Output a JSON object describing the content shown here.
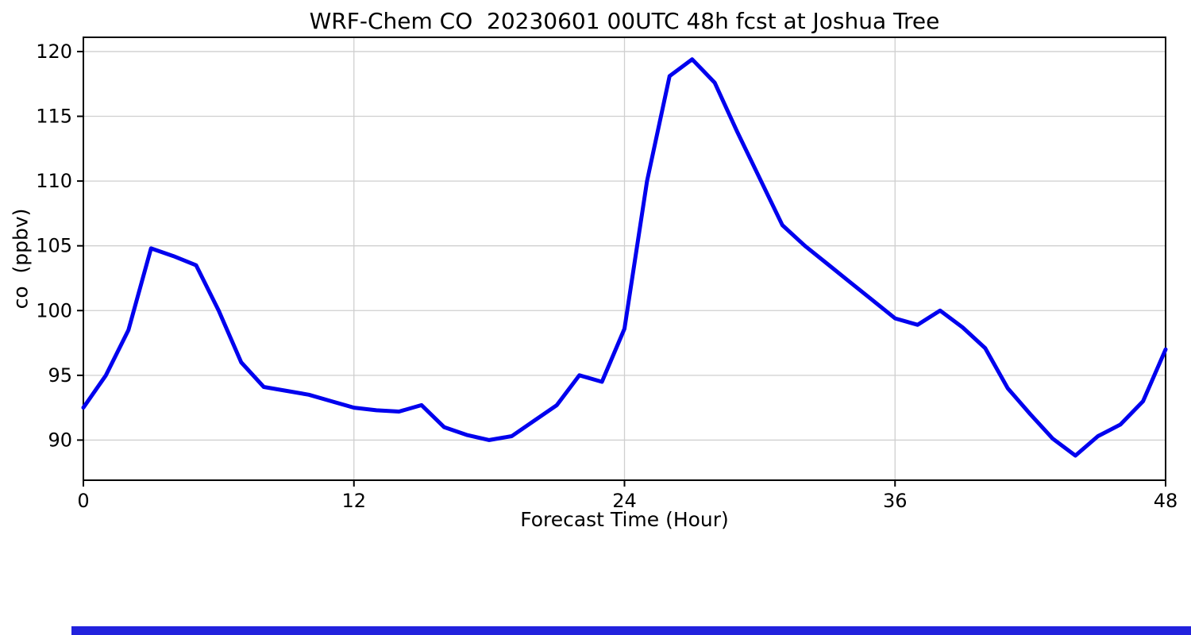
{
  "page": {
    "background": "#ffffff"
  },
  "chart_data": {
    "type": "line",
    "title": "WRF-Chem CO  20230601 00UTC 48h fcst at Joshua Tree",
    "xlabel": "Forecast Time (Hour)",
    "ylabel": "co  (ppbv)",
    "x_ticks": [
      0,
      12,
      24,
      36,
      48
    ],
    "y_ticks": [
      90,
      95,
      100,
      105,
      110,
      115,
      120
    ],
    "xlim": [
      0,
      48
    ],
    "ylim": [
      86.9,
      121.1
    ],
    "grid": true,
    "grid_color": "#cfcfcf",
    "line_color": "#0000ee",
    "line_width": 5,
    "x": [
      0,
      1,
      2,
      3,
      4,
      5,
      6,
      7,
      8,
      9,
      10,
      11,
      12,
      13,
      14,
      15,
      16,
      17,
      18,
      19,
      20,
      21,
      22,
      23,
      24,
      25,
      26,
      27,
      28,
      29,
      30,
      31,
      32,
      33,
      34,
      35,
      36,
      37,
      38,
      39,
      40,
      41,
      42,
      43,
      44,
      45,
      46,
      47,
      48
    ],
    "y": [
      92.5,
      95.0,
      98.5,
      104.8,
      104.2,
      103.5,
      100.0,
      96.0,
      94.1,
      93.8,
      93.5,
      93.0,
      92.5,
      92.3,
      92.2,
      92.7,
      91.0,
      90.4,
      90.0,
      90.3,
      91.5,
      92.7,
      95.0,
      94.5,
      98.6,
      110.0,
      118.1,
      119.4,
      117.6,
      113.8,
      110.2,
      106.6,
      105.0,
      103.6,
      102.2,
      100.8,
      99.4,
      98.9,
      100.0,
      98.7,
      97.1,
      94.0,
      92.0,
      90.1,
      88.8,
      90.3,
      91.2,
      93.0,
      97.0
    ]
  },
  "bottom_bar": {
    "color": "#2222dd"
  }
}
